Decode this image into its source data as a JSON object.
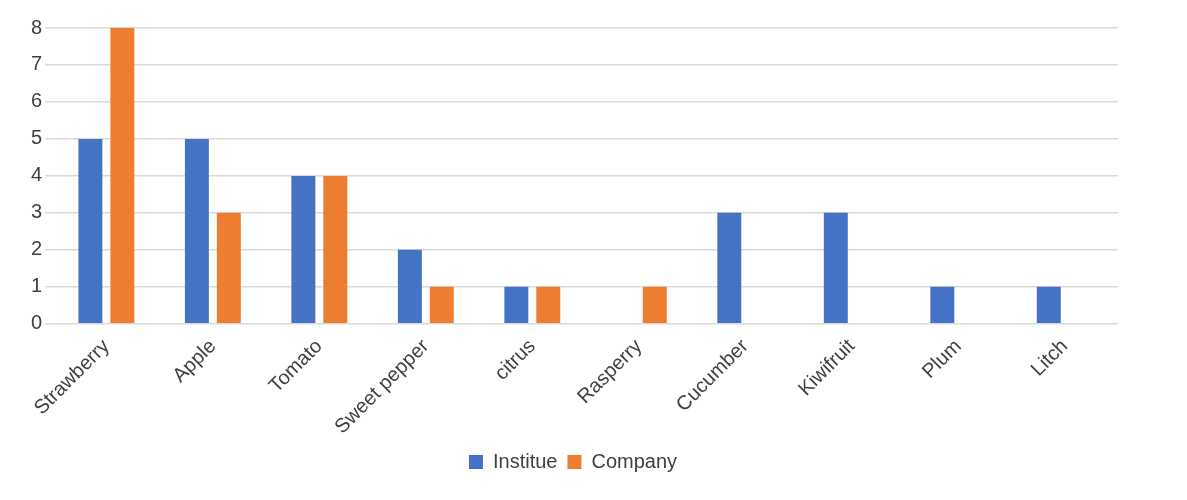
{
  "chart_data": {
    "type": "bar",
    "categories": [
      "Strawberry",
      "Apple",
      "Tomato",
      "Sweet pepper",
      "citrus",
      "Rasperry",
      "Cucumber",
      "Kiwifruit",
      "Plum",
      "Litch"
    ],
    "series": [
      {
        "name": "Institue",
        "color": "#4472c4",
        "values": [
          5,
          5,
          4,
          2,
          1,
          0,
          3,
          3,
          1,
          1
        ]
      },
      {
        "name": "Company",
        "color": "#ed7d31",
        "values": [
          8,
          3,
          4,
          1,
          1,
          1,
          0,
          0,
          0,
          0
        ]
      }
    ],
    "ylim": [
      0,
      8
    ],
    "yticks": [
      0,
      1,
      2,
      3,
      4,
      5,
      6,
      7,
      8
    ],
    "grid": "y",
    "legend": "bottom"
  }
}
